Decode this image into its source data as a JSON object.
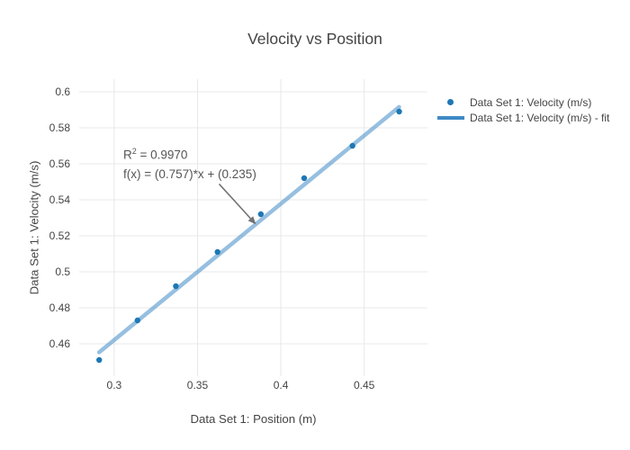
{
  "title": "Velocity vs Position",
  "legend": {
    "items": [
      {
        "label": "Data Set 1: Velocity (m/s)",
        "glyph": "marker"
      },
      {
        "label": "Data Set 1: Velocity (m/s) - fit",
        "glyph": "line"
      }
    ]
  },
  "annotation": {
    "r2_prefix": "R",
    "r2_sup": "2",
    "r2_rest": " = 0.9970",
    "equation": "f(x) = (0.757)*x + (0.235)"
  },
  "colors": {
    "marker": "#1f77b4",
    "fit_line": "#3f8ac6",
    "grid": "#e8e8e8",
    "text": "#444444",
    "annotation_text": "#555555",
    "arrow": "#737373"
  },
  "chart_data": {
    "type": "scatter",
    "title": "Velocity vs Position",
    "xlabel": "Data Set 1: Position (m)",
    "ylabel": "Data Set 1: Velocity (m/s)",
    "x": [
      0.291,
      0.314,
      0.337,
      0.362,
      0.388,
      0.414,
      0.443,
      0.471
    ],
    "y": [
      0.451,
      0.473,
      0.492,
      0.511,
      0.532,
      0.552,
      0.57,
      0.589
    ],
    "series": [
      {
        "name": "Data Set 1: Velocity (m/s)",
        "style": "markers"
      },
      {
        "name": "Data Set 1: Velocity (m/s) - fit",
        "style": "line"
      }
    ],
    "fit": {
      "slope": 0.757,
      "intercept": 0.235,
      "r_squared": 0.997,
      "x_start": 0.291,
      "x_end": 0.471
    },
    "xlim": [
      0.279,
      0.488
    ],
    "ylim": [
      0.442,
      0.607
    ],
    "xticks": [
      {
        "v": 0.3,
        "label": "0.3"
      },
      {
        "v": 0.35,
        "label": "0.35"
      },
      {
        "v": 0.4,
        "label": "0.4"
      },
      {
        "v": 0.45,
        "label": "0.45"
      }
    ],
    "yticks": [
      {
        "v": 0.46,
        "label": "0.46"
      },
      {
        "v": 0.48,
        "label": "0.48"
      },
      {
        "v": 0.5,
        "label": "0.5"
      },
      {
        "v": 0.52,
        "label": "0.52"
      },
      {
        "v": 0.54,
        "label": "0.54"
      },
      {
        "v": 0.56,
        "label": "0.56"
      },
      {
        "v": 0.58,
        "label": "0.58"
      },
      {
        "v": 0.6,
        "label": "0.6"
      }
    ],
    "grid": true,
    "legend_position": "outside-top-right",
    "marker_size": 6.4,
    "fit_line_width": 4.5,
    "fit_line_opacity": 0.55,
    "annotation": {
      "target_x": 0.3851,
      "target_y": 0.5263,
      "ax": -41,
      "ay": -45
    }
  }
}
